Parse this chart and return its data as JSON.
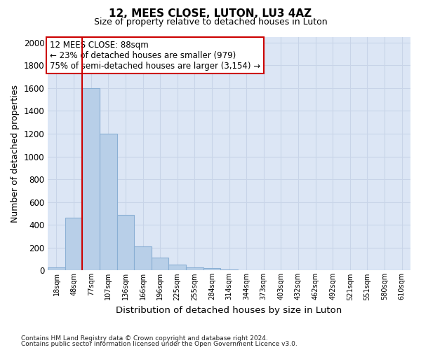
{
  "title": "12, MEES CLOSE, LUTON, LU3 4AZ",
  "subtitle": "Size of property relative to detached houses in Luton",
  "xlabel": "Distribution of detached houses by size in Luton",
  "ylabel": "Number of detached properties",
  "categories": [
    "18sqm",
    "48sqm",
    "77sqm",
    "107sqm",
    "136sqm",
    "166sqm",
    "196sqm",
    "225sqm",
    "255sqm",
    "284sqm",
    "314sqm",
    "344sqm",
    "373sqm",
    "403sqm",
    "432sqm",
    "462sqm",
    "492sqm",
    "521sqm",
    "551sqm",
    "580sqm",
    "610sqm"
  ],
  "values": [
    30,
    460,
    1600,
    1200,
    490,
    210,
    115,
    50,
    30,
    20,
    10,
    0,
    0,
    0,
    0,
    0,
    0,
    0,
    0,
    0,
    0
  ],
  "bar_color": "#b8cfe8",
  "bar_edge_color": "#8aafd4",
  "vline_color": "#cc0000",
  "annotation_text": "12 MEES CLOSE: 88sqm\n← 23% of detached houses are smaller (979)\n75% of semi-detached houses are larger (3,154) →",
  "annotation_box_color": "#ffffff",
  "annotation_box_edge": "#cc0000",
  "grid_color": "#c8d4e8",
  "background_color": "#dce6f5",
  "ylim": [
    0,
    2050
  ],
  "yticks": [
    0,
    200,
    400,
    600,
    800,
    1000,
    1200,
    1400,
    1600,
    1800,
    2000
  ],
  "footnote1": "Contains HM Land Registry data © Crown copyright and database right 2024.",
  "footnote2": "Contains public sector information licensed under the Open Government Licence v3.0."
}
